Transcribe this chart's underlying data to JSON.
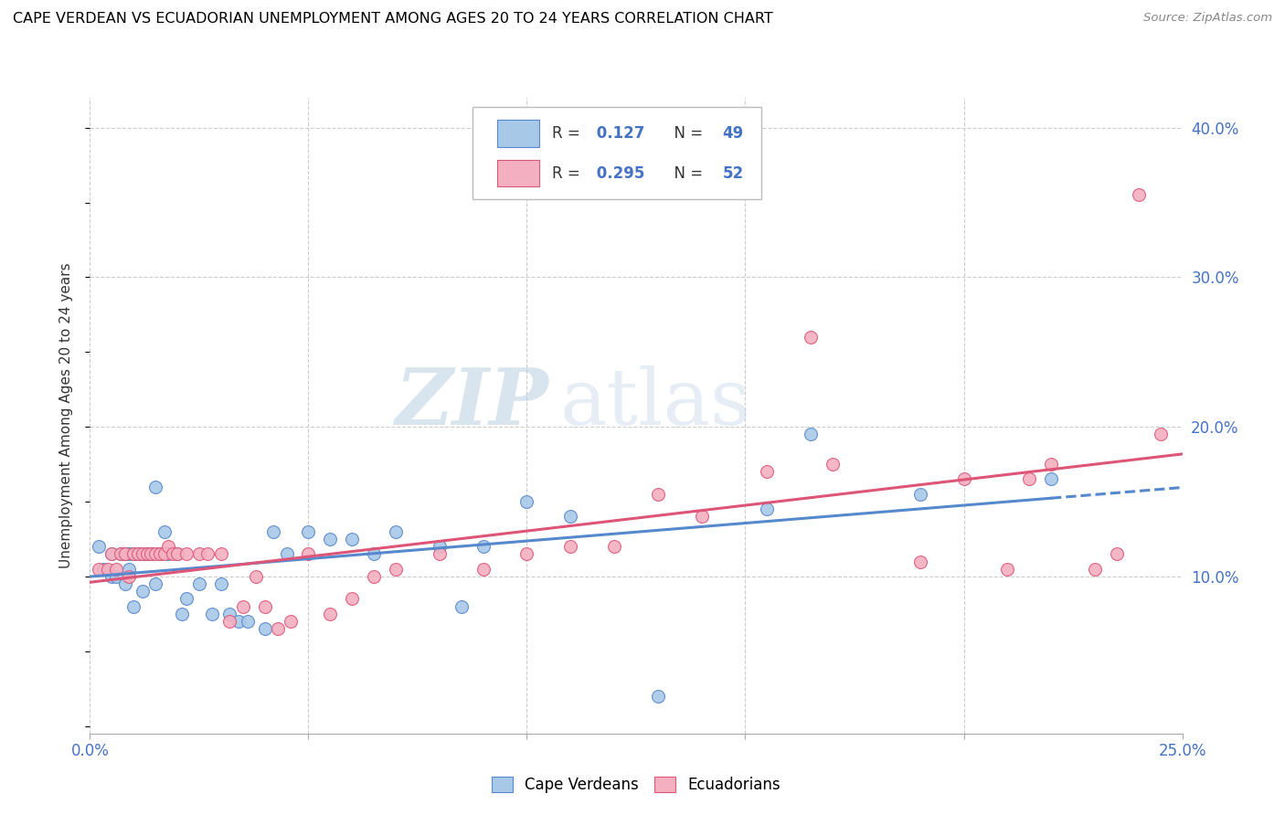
{
  "title": "CAPE VERDEAN VS ECUADORIAN UNEMPLOYMENT AMONG AGES 20 TO 24 YEARS CORRELATION CHART",
  "source": "Source: ZipAtlas.com",
  "ylabel": "Unemployment Among Ages 20 to 24 years",
  "xlim": [
    0.0,
    0.25
  ],
  "ylim": [
    -0.005,
    0.42
  ],
  "xticks": [
    0.0,
    0.05,
    0.1,
    0.15,
    0.2,
    0.25
  ],
  "xtick_labels": [
    "0.0%",
    "",
    "",
    "",
    "",
    "25.0%"
  ],
  "yticks_right": [
    0.1,
    0.2,
    0.3,
    0.4
  ],
  "ytick_labels_right": [
    "10.0%",
    "20.0%",
    "30.0%",
    "40.0%"
  ],
  "cape_verdean_R": 0.127,
  "cape_verdean_N": 49,
  "ecuadorian_R": 0.295,
  "ecuadorian_N": 52,
  "color_cv": "#a8c8e8",
  "color_ec": "#f4b0c0",
  "line_color_cv": "#5588cc",
  "line_color_ec": "#dd5577",
  "watermark_zip": "ZIP",
  "watermark_atlas": "atlas",
  "cv_x": [
    0.002,
    0.003,
    0.005,
    0.005,
    0.006,
    0.007,
    0.008,
    0.008,
    0.009,
    0.009,
    0.01,
    0.01,
    0.011,
    0.012,
    0.012,
    0.013,
    0.014,
    0.015,
    0.015,
    0.016,
    0.017,
    0.018,
    0.02,
    0.021,
    0.022,
    0.025,
    0.028,
    0.03,
    0.032,
    0.034,
    0.036,
    0.04,
    0.042,
    0.045,
    0.05,
    0.055,
    0.06,
    0.065,
    0.07,
    0.08,
    0.085,
    0.09,
    0.1,
    0.11,
    0.13,
    0.155,
    0.165,
    0.19,
    0.22
  ],
  "cv_y": [
    0.12,
    0.105,
    0.115,
    0.1,
    0.1,
    0.115,
    0.115,
    0.095,
    0.115,
    0.105,
    0.115,
    0.08,
    0.115,
    0.115,
    0.09,
    0.115,
    0.115,
    0.16,
    0.095,
    0.115,
    0.13,
    0.115,
    0.115,
    0.075,
    0.085,
    0.095,
    0.075,
    0.095,
    0.075,
    0.07,
    0.07,
    0.065,
    0.13,
    0.115,
    0.13,
    0.125,
    0.125,
    0.115,
    0.13,
    0.12,
    0.08,
    0.12,
    0.15,
    0.14,
    0.02,
    0.145,
    0.195,
    0.155,
    0.165
  ],
  "ec_x": [
    0.002,
    0.004,
    0.005,
    0.006,
    0.007,
    0.008,
    0.009,
    0.01,
    0.011,
    0.012,
    0.013,
    0.014,
    0.015,
    0.016,
    0.017,
    0.018,
    0.019,
    0.02,
    0.022,
    0.025,
    0.027,
    0.03,
    0.032,
    0.035,
    0.038,
    0.04,
    0.043,
    0.046,
    0.05,
    0.055,
    0.06,
    0.065,
    0.07,
    0.08,
    0.09,
    0.1,
    0.11,
    0.12,
    0.13,
    0.14,
    0.155,
    0.165,
    0.17,
    0.19,
    0.2,
    0.21,
    0.215,
    0.22,
    0.23,
    0.235,
    0.24,
    0.245
  ],
  "ec_y": [
    0.105,
    0.105,
    0.115,
    0.105,
    0.115,
    0.115,
    0.1,
    0.115,
    0.115,
    0.115,
    0.115,
    0.115,
    0.115,
    0.115,
    0.115,
    0.12,
    0.115,
    0.115,
    0.115,
    0.115,
    0.115,
    0.115,
    0.07,
    0.08,
    0.1,
    0.08,
    0.065,
    0.07,
    0.115,
    0.075,
    0.085,
    0.1,
    0.105,
    0.115,
    0.105,
    0.115,
    0.12,
    0.12,
    0.155,
    0.14,
    0.17,
    0.26,
    0.175,
    0.11,
    0.165,
    0.105,
    0.165,
    0.175,
    0.105,
    0.115,
    0.355,
    0.195
  ]
}
